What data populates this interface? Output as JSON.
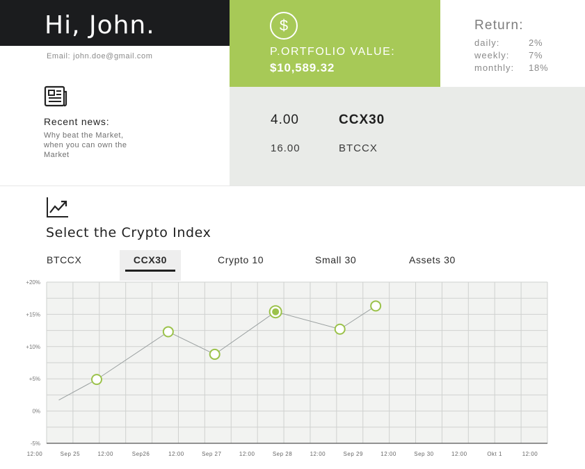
{
  "header": {
    "greeting": "Hi, John.",
    "email_label": "Email:",
    "email_value": "john.doe@gmail.com"
  },
  "portfolio": {
    "icon": "dollar-icon",
    "icon_glyph": "$",
    "label": "P.ORTFOLIO VALUE:",
    "value": "$10,589.32",
    "accent_color": "#a7c957"
  },
  "returns": {
    "title": "Return:",
    "items": [
      {
        "label": "daily:",
        "value": "2%"
      },
      {
        "label": "weekly:",
        "value": "7%"
      },
      {
        "label": "monthly:",
        "value": "18%"
      }
    ]
  },
  "holdings": [
    {
      "amount": "4.00",
      "symbol": "CCX30"
    },
    {
      "amount": "16.00",
      "symbol": "BTCCX"
    }
  ],
  "news": {
    "icon": "newspaper-icon",
    "title": "Recent news:",
    "text": "Why beat the Market, when you can own the Market"
  },
  "index_section": {
    "icon": "trending-up-icon",
    "title": "Select the Crypto Index",
    "tabs": [
      {
        "label": "BTCCX",
        "active": false
      },
      {
        "label": "CCX30",
        "active": true
      },
      {
        "label": "Crypto 10",
        "active": false
      },
      {
        "label": "Small 30",
        "active": false
      },
      {
        "label": "Assets 30",
        "active": false
      }
    ]
  },
  "chart_data": {
    "type": "line",
    "title": "",
    "xlabel": "",
    "ylabel": "",
    "grid": true,
    "y_ticks": [
      "+20%",
      "+15%",
      "+10%",
      "+5%",
      "0%",
      "-5%"
    ],
    "x_ticks": [
      "12:00",
      "Sep 25",
      "12:00",
      "Sep26",
      "12:00",
      "Sep 27",
      "12:00",
      "Sep 28",
      "12:00",
      "Sep 29",
      "12:00",
      "Sep 30",
      "12:00",
      "Okt 1",
      "12:00"
    ],
    "ylim": [
      -5,
      20
    ],
    "xlim": [
      0,
      7
    ],
    "series": [
      {
        "x": [
          0.17,
          0.7,
          1.7,
          2.35,
          3.2,
          4.1,
          4.6
        ],
        "y": [
          1.7,
          4.9,
          12.3,
          8.8,
          15.4,
          12.7,
          16.3
        ],
        "markers": [
          false,
          true,
          true,
          true,
          true,
          true,
          true
        ],
        "highlight_index": 4
      }
    ],
    "line_color": "#9aa0a0",
    "marker_color": "#9bc24a",
    "plot_bg": "#f2f3f1",
    "grid_color": "#cfd1cf"
  }
}
